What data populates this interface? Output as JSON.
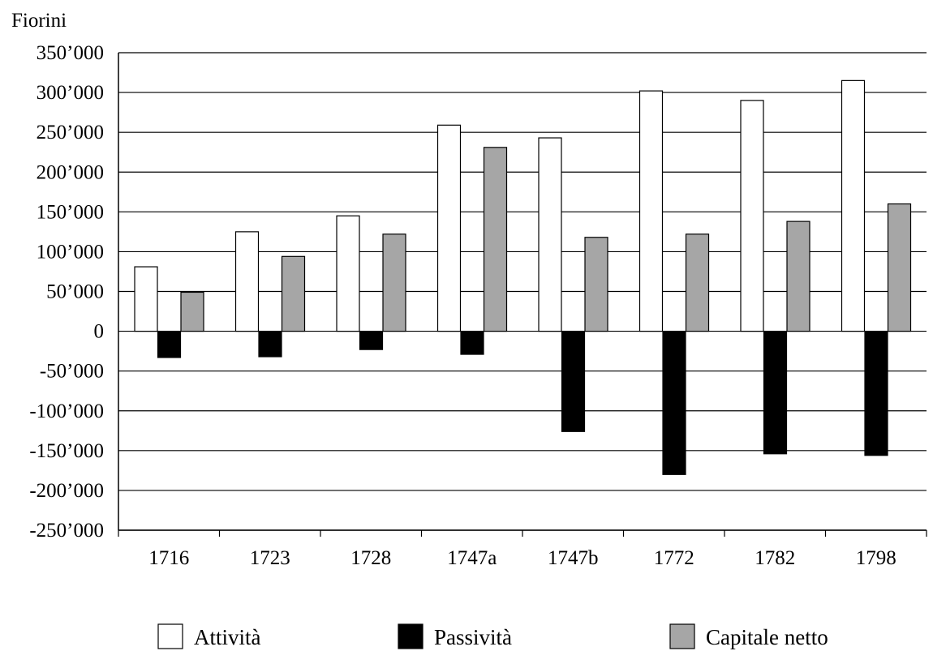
{
  "chart_data": {
    "type": "bar",
    "title": "",
    "ylabel": "Fiorini",
    "xlabel": "",
    "categories": [
      "1716",
      "1723",
      "1728",
      "1747a",
      "1747b",
      "1772",
      "1782",
      "1798"
    ],
    "series": [
      {
        "name": "Attività",
        "color": "#ffffff",
        "values": [
          81000,
          125000,
          145000,
          259000,
          243000,
          302000,
          290000,
          315000
        ]
      },
      {
        "name": "Passività",
        "color": "#000000",
        "values": [
          -33000,
          -32000,
          -23000,
          -29000,
          -126000,
          -180000,
          -154000,
          -156000
        ]
      },
      {
        "name": "Capitale netto",
        "color": "#a6a6a6",
        "values": [
          49000,
          94000,
          122000,
          231000,
          118000,
          122000,
          138000,
          160000
        ]
      }
    ],
    "ylim": [
      -250000,
      350000
    ],
    "yticks": [
      350000,
      300000,
      250000,
      200000,
      150000,
      100000,
      50000,
      0,
      -50000,
      -100000,
      -150000,
      -200000,
      -250000
    ],
    "ytick_labels": [
      "350’000",
      "300’000",
      "250’000",
      "200’000",
      "150’000",
      "100’000",
      "50’000",
      "0",
      "-50’000",
      "-100’000",
      "-150’000",
      "-200’000",
      "-250’000"
    ],
    "grid": true,
    "legend_position": "bottom"
  }
}
